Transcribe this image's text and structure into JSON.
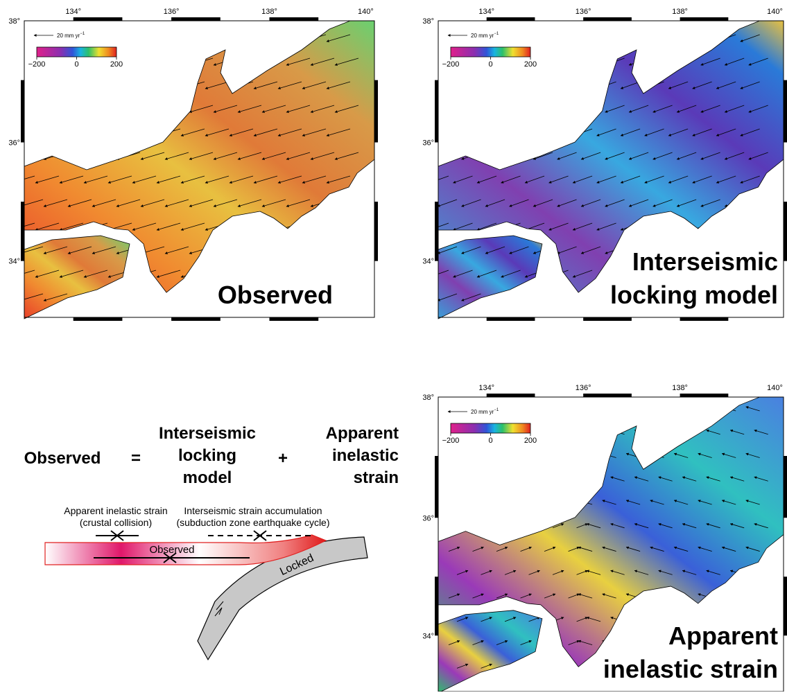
{
  "maps": [
    {
      "label": [
        "Observed"
      ],
      "lon_ticks": [
        "134°",
        "136°",
        "138°",
        "140°"
      ],
      "lat_ticks": [
        "38°",
        "36°",
        "34°"
      ],
      "scale_label": "20 mm yr",
      "scale_exp": "−1",
      "colorbar_ticks": [
        "−200",
        "0",
        "200"
      ]
    },
    {
      "label": [
        "Interseismic",
        "locking model"
      ],
      "lon_ticks": [
        "134°",
        "136°",
        "138°",
        "140°"
      ],
      "lat_ticks": [
        "38°",
        "36°",
        "34°"
      ],
      "scale_label": "20 mm yr",
      "scale_exp": "−1",
      "colorbar_ticks": [
        "−200",
        "0",
        "200"
      ]
    },
    {
      "label": [
        "Apparent",
        "inelastic strain"
      ],
      "lon_ticks": [
        "134°",
        "136°",
        "138°",
        "140°"
      ],
      "lat_ticks": [
        "38°",
        "36°",
        "34°"
      ],
      "scale_label": "20 mm yr",
      "scale_exp": "−1",
      "colorbar_ticks": [
        "−200",
        "0",
        "200"
      ]
    }
  ],
  "equation": {
    "observed": "Observed",
    "equals": "=",
    "locking": [
      "Interseismic",
      "locking",
      "model"
    ],
    "plus": "+",
    "inelastic": [
      "Apparent",
      "inelastic",
      "strain"
    ]
  },
  "diagram": {
    "left_caption": [
      "Apparent inelastic strain",
      "(crustal collision)"
    ],
    "right_caption": [
      "Interseismic strain accumulation",
      "(subduction zone earthquake cycle)"
    ],
    "observed": "Observed",
    "locked": "Locked"
  }
}
